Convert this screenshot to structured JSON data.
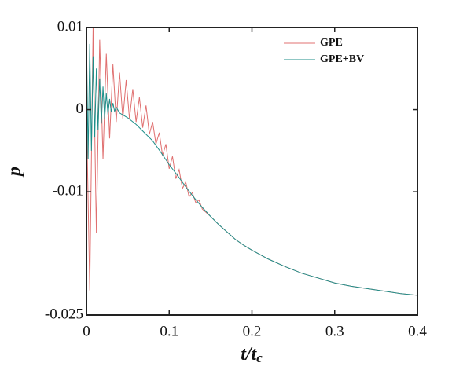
{
  "chart_data": {
    "type": "line",
    "xlabel": "t/tc",
    "ylabel": "p",
    "xlim": [
      0,
      0.4
    ],
    "xticks": [
      0,
      0.1,
      0.2,
      0.3,
      0.4
    ],
    "ylim": [
      -0.025,
      0.01
    ],
    "yticks": [
      -0.025,
      -0.01,
      0,
      0.01
    ],
    "legend": "upper right",
    "series": [
      {
        "name": "GPE",
        "color": "#e07070",
        "x": [
          0,
          0.004,
          0.008,
          0.012,
          0.016,
          0.02,
          0.024,
          0.028,
          0.032,
          0.036,
          0.04,
          0.044,
          0.048,
          0.052,
          0.056,
          0.06,
          0.064,
          0.068,
          0.072,
          0.076,
          0.08,
          0.084,
          0.088,
          0.092,
          0.096,
          0.1,
          0.104,
          0.108,
          0.112,
          0.116,
          0.12,
          0.124,
          0.128,
          0.132,
          0.136,
          0.14,
          0.15,
          0.16,
          0.17,
          0.18,
          0.19,
          0.2,
          0.22,
          0.24,
          0.26,
          0.28,
          0.3,
          0.32,
          0.34,
          0.36,
          0.38,
          0.4
        ],
        "values": [
          0,
          -0.022,
          0.01,
          -0.015,
          0.0085,
          -0.006,
          0.0068,
          -0.0035,
          0.0055,
          -0.0015,
          0.0045,
          -0.0011,
          0.0036,
          -0.0011,
          0.0025,
          -0.0015,
          0.0015,
          -0.0022,
          0.0005,
          -0.003,
          -0.0015,
          -0.0042,
          -0.0028,
          -0.0056,
          -0.0042,
          -0.0072,
          -0.0057,
          -0.0084,
          -0.0073,
          -0.0096,
          -0.0088,
          -0.0106,
          -0.0101,
          -0.0113,
          -0.011,
          -0.0121,
          -0.013,
          -0.014,
          -0.0149,
          -0.0158,
          -0.0165,
          -0.0171,
          -0.0182,
          -0.0191,
          -0.0199,
          -0.0205,
          -0.0211,
          -0.0215,
          -0.0218,
          -0.0221,
          -0.0224,
          -0.0226
        ]
      },
      {
        "name": "GPE+BV",
        "color": "#1f8f8a",
        "x": [
          0,
          0.002,
          0.004,
          0.006,
          0.008,
          0.01,
          0.012,
          0.014,
          0.016,
          0.018,
          0.02,
          0.022,
          0.024,
          0.026,
          0.028,
          0.03,
          0.032,
          0.034,
          0.036,
          0.04,
          0.05,
          0.06,
          0.07,
          0.08,
          0.09,
          0.1,
          0.11,
          0.12,
          0.13,
          0.14,
          0.15,
          0.16,
          0.17,
          0.18,
          0.19,
          0.2,
          0.22,
          0.24,
          0.26,
          0.28,
          0.3,
          0.32,
          0.34,
          0.36,
          0.38,
          0.4
        ],
        "values": [
          0.009,
          -0.006,
          0.008,
          -0.005,
          0.0065,
          -0.0034,
          0.005,
          -0.0025,
          0.0038,
          -0.0017,
          0.0028,
          -0.0011,
          0.002,
          -0.0006,
          0.0013,
          -0.0003,
          0.0008,
          -0.0002,
          0.0003,
          -0.0004,
          -0.001,
          -0.0018,
          -0.0028,
          -0.0038,
          -0.0052,
          -0.0067,
          -0.008,
          -0.0094,
          -0.0107,
          -0.0119,
          -0.013,
          -0.014,
          -0.0149,
          -0.0158,
          -0.0165,
          -0.0171,
          -0.0182,
          -0.0191,
          -0.0199,
          -0.0205,
          -0.0211,
          -0.0215,
          -0.0218,
          -0.0221,
          -0.0224,
          -0.0226
        ]
      }
    ]
  }
}
